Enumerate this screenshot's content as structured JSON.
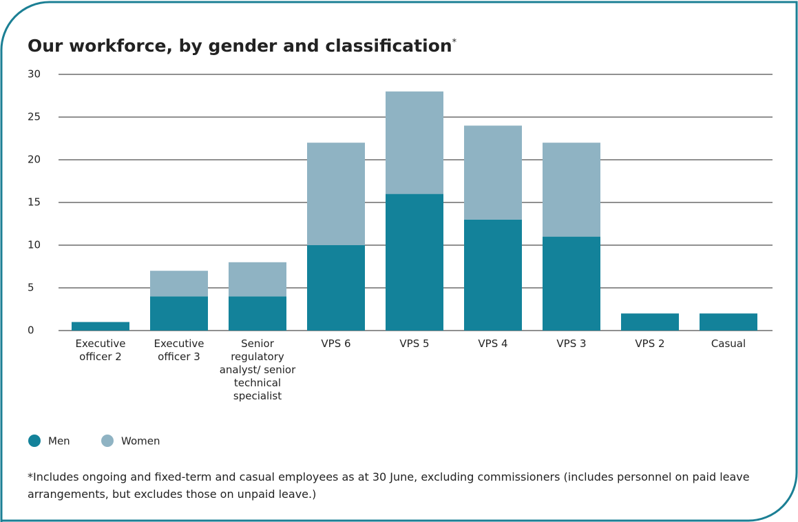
{
  "chart_data": {
    "type": "stacked_bar",
    "title": "Our workforce, by gender and classification",
    "title_mark": "*",
    "categories": [
      "Executive officer 2",
      "Executive officer 3",
      "Senior regulatory analyst/ senior technical specialist",
      "VPS 6",
      "VPS 5",
      "VPS 4",
      "VPS 3",
      "VPS 2",
      "Casual"
    ],
    "series": [
      {
        "name": "Men",
        "color": "#13829a",
        "values": [
          1,
          4,
          4,
          10,
          16,
          13,
          11,
          2,
          2
        ]
      },
      {
        "name": "Women",
        "color": "#8fb3c3",
        "values": [
          0,
          3,
          4,
          12,
          12,
          11,
          11,
          0,
          0
        ]
      }
    ],
    "ylim": [
      0,
      30
    ],
    "yticks": [
      0,
      5,
      10,
      15,
      20,
      25,
      30
    ],
    "grid": true,
    "footnote": "*Includes ongoing and fixed-term and casual employees as at 30 June, excluding commissioners (includes personnel on paid leave arrangements, but excludes those on unpaid leave.)"
  }
}
